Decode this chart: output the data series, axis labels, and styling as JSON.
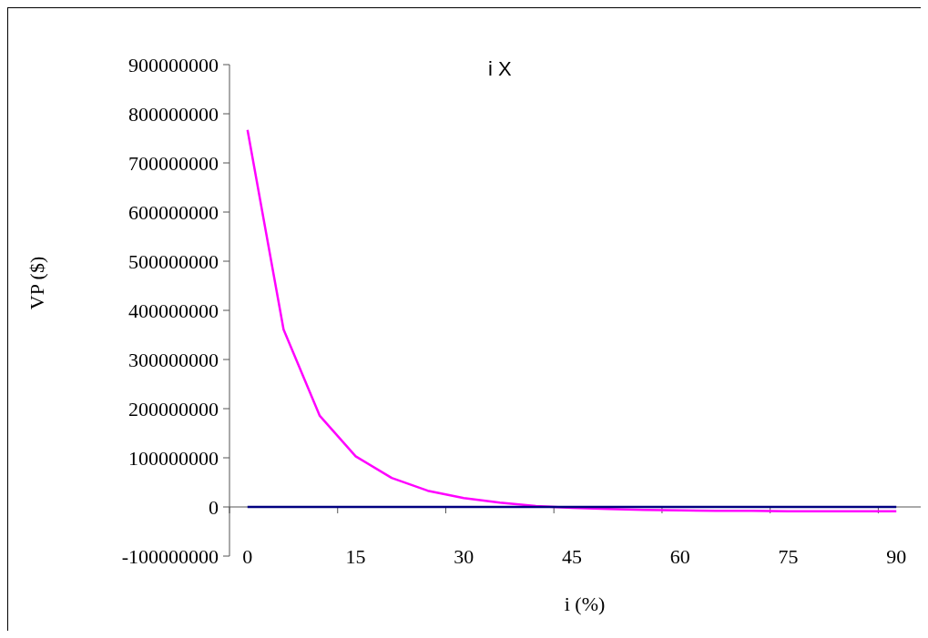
{
  "chart_data": {
    "type": "line",
    "title": "i X",
    "xlabel": "i (%)",
    "ylabel": "VP ($)",
    "categories": [
      "0",
      null,
      null,
      "15",
      null,
      null,
      "30",
      null,
      null,
      "45",
      null,
      null,
      "60",
      null,
      null,
      "75",
      null,
      null,
      "90"
    ],
    "series": [
      {
        "color": "#ff00ff",
        "values": [
          767000000,
          361000000,
          186000000,
          103000000,
          59000000,
          33000000,
          18000000,
          9000000,
          2000000,
          -2000000,
          -4000000,
          -6000000,
          -7000000,
          -8000000,
          -8000000,
          -9000000,
          -9000000,
          -9000000,
          -9000000
        ]
      },
      {
        "color": "#000080",
        "values": [
          0,
          0,
          0,
          0,
          0,
          0,
          0,
          0,
          0,
          0,
          0,
          0,
          0,
          0,
          0,
          0,
          0,
          0,
          0
        ]
      }
    ],
    "ylim": [
      -100000000,
      900000000
    ],
    "yticks": [
      -100000000,
      0,
      100000000,
      200000000,
      300000000,
      400000000,
      500000000,
      600000000,
      700000000,
      800000000,
      900000000
    ],
    "grid": false,
    "marker": "none",
    "line_style": "solid"
  }
}
